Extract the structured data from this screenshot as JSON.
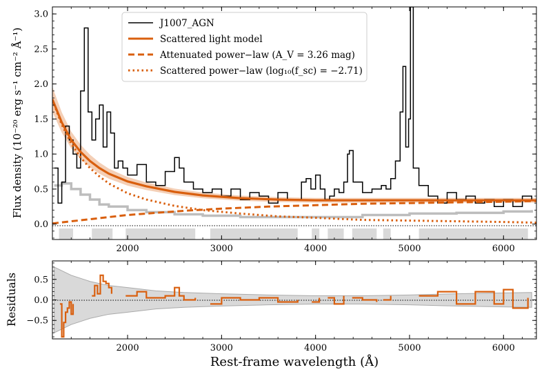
{
  "chart_data": [
    {
      "panel": "top",
      "type": "line",
      "ylabel": "Flux density (10⁻²⁰ erg s⁻¹ cm⁻² Å⁻¹)",
      "xlim": [
        1200,
        6350
      ],
      "ylim": [
        -0.22,
        3.1
      ],
      "yticks": [
        0.0,
        0.5,
        1.0,
        1.5,
        2.0,
        2.5,
        3.0
      ],
      "ytick_labels": [
        "0.0",
        "0.5",
        "1.0",
        "1.5",
        "2.0",
        "2.5",
        "3.0"
      ],
      "xticks": [
        2000,
        3000,
        4000,
        5000,
        6000
      ],
      "xtick_labels": [
        "2000",
        "3000",
        "4000",
        "5000",
        "6000"
      ],
      "zero_line": true,
      "legend": {
        "placement": "top-center",
        "entries": [
          {
            "label": "J1007_AGN",
            "style": "solid-thin",
            "color": "#000000"
          },
          {
            "label": "Scattered light model",
            "style": "solid-thick",
            "color": "#d95f0e"
          },
          {
            "label": "Attenuated power−law  (A_V = 3.26 mag)",
            "style": "dashed",
            "color": "#d95f0e"
          },
          {
            "label": "Scattered power−law  (log₁₀(f_sc) = −2.71)",
            "style": "dotted",
            "color": "#d95f0e"
          }
        ]
      },
      "masked_regions": [
        [
          1270,
          1420
        ],
        [
          1620,
          1840
        ],
        [
          1980,
          2720
        ],
        [
          2880,
          3810
        ],
        [
          3960,
          4040
        ],
        [
          4130,
          4300
        ],
        [
          4390,
          4650
        ],
        [
          4720,
          4800
        ],
        [
          5100,
          6260
        ]
      ],
      "series": [
        {
          "name": "J1007_AGN",
          "x": [
            1220,
            1260,
            1300,
            1340,
            1380,
            1420,
            1460,
            1500,
            1540,
            1580,
            1620,
            1660,
            1700,
            1740,
            1780,
            1820,
            1860,
            1900,
            1950,
            2000,
            2100,
            2200,
            2300,
            2400,
            2500,
            2550,
            2600,
            2700,
            2800,
            2900,
            3000,
            3100,
            3200,
            3300,
            3400,
            3500,
            3600,
            3700,
            3800,
            3850,
            3900,
            3950,
            4000,
            4050,
            4100,
            4150,
            4200,
            4250,
            4300,
            4340,
            4360,
            4400,
            4500,
            4600,
            4700,
            4750,
            4800,
            4850,
            4900,
            4930,
            4960,
            4990,
            5010,
            5040,
            5100,
            5200,
            5300,
            5400,
            5500,
            5600,
            5700,
            5800,
            5900,
            6000,
            6100,
            6200,
            6300
          ],
          "y": [
            0.8,
            0.3,
            0.6,
            1.4,
            1.2,
            1.0,
            0.8,
            1.9,
            2.8,
            1.6,
            1.2,
            1.5,
            1.7,
            1.1,
            1.6,
            1.3,
            0.8,
            0.9,
            0.8,
            0.7,
            0.85,
            0.6,
            0.55,
            0.75,
            0.95,
            0.8,
            0.6,
            0.5,
            0.45,
            0.5,
            0.4,
            0.5,
            0.35,
            0.45,
            0.4,
            0.3,
            0.45,
            0.35,
            0.35,
            0.6,
            0.65,
            0.5,
            0.7,
            0.5,
            0.35,
            0.4,
            0.5,
            0.45,
            0.6,
            1.0,
            1.05,
            0.6,
            0.45,
            0.5,
            0.55,
            0.5,
            0.65,
            0.9,
            1.6,
            2.25,
            1.1,
            1.5,
            3.1,
            0.8,
            0.55,
            0.4,
            0.3,
            0.45,
            0.35,
            0.4,
            0.3,
            0.35,
            0.25,
            0.35,
            0.25,
            0.4,
            0.35
          ]
        },
        {
          "name": "Scattered light model",
          "x": [
            1200,
            1300,
            1400,
            1500,
            1600,
            1700,
            1800,
            2000,
            2200,
            2500,
            2800,
            3200,
            3600,
            4000,
            4500,
            5000,
            5500,
            6000,
            6350
          ],
          "y": [
            1.78,
            1.45,
            1.2,
            1.03,
            0.9,
            0.8,
            0.72,
            0.61,
            0.54,
            0.46,
            0.41,
            0.37,
            0.35,
            0.34,
            0.34,
            0.34,
            0.34,
            0.34,
            0.34
          ]
        },
        {
          "name": "Attenuated power−law  (A_V = 3.26 mag)",
          "x": [
            1200,
            1400,
            1600,
            1800,
            2000,
            2300,
            2600,
            3000,
            3500,
            4000,
            4500,
            5000,
            5500,
            6000,
            6350
          ],
          "y": [
            0.01,
            0.04,
            0.07,
            0.1,
            0.13,
            0.16,
            0.19,
            0.22,
            0.25,
            0.27,
            0.29,
            0.3,
            0.31,
            0.32,
            0.33
          ]
        },
        {
          "name": "Scattered power−law  (log₁₀(f_sc) = −2.71)",
          "x": [
            1200,
            1300,
            1400,
            1500,
            1600,
            1700,
            1800,
            2000,
            2200,
            2500,
            2800,
            3200,
            3600,
            4000,
            4500,
            5000,
            5500,
            6000,
            6350
          ],
          "y": [
            1.77,
            1.42,
            1.15,
            0.95,
            0.8,
            0.68,
            0.58,
            0.44,
            0.35,
            0.26,
            0.2,
            0.15,
            0.11,
            0.09,
            0.06,
            0.05,
            0.04,
            0.03,
            0.02
          ]
        },
        {
          "name": "error",
          "x": [
            1220,
            1300,
            1400,
            1500,
            1600,
            1700,
            1800,
            2000,
            2200,
            2500,
            2800,
            3200,
            3600,
            4000,
            4500,
            5000,
            5500,
            6000,
            6300
          ],
          "y": [
            0.55,
            0.58,
            0.5,
            0.42,
            0.35,
            0.28,
            0.25,
            0.2,
            0.17,
            0.14,
            0.12,
            0.1,
            0.1,
            0.1,
            0.13,
            0.15,
            0.16,
            0.18,
            0.2
          ]
        }
      ]
    },
    {
      "panel": "bottom",
      "type": "line",
      "xlabel": "Rest-frame wavelength (Å)",
      "ylabel": "Residuals",
      "xlim": [
        1200,
        6350
      ],
      "ylim": [
        -0.95,
        0.95
      ],
      "yticks": [
        -0.5,
        0.0,
        0.5
      ],
      "ytick_labels": [
        "−0.5",
        "0.0",
        "0.5"
      ],
      "xticks": [
        2000,
        3000,
        4000,
        5000,
        6000
      ],
      "xtick_labels": [
        "2000",
        "3000",
        "4000",
        "5000",
        "6000"
      ],
      "zero_line": true,
      "series": [
        {
          "name": "residuals",
          "segments": [
            {
              "x": [
                1280,
                1300,
                1320,
                1340,
                1360,
                1380,
                1400,
                1420
              ],
              "y": [
                -0.1,
                -0.9,
                -0.55,
                -0.3,
                -0.2,
                -0.05,
                -0.35,
                -0.1
              ]
            },
            {
              "x": [
                1620,
                1650,
                1680,
                1710,
                1740,
                1770,
                1800,
                1830
              ],
              "y": [
                0.1,
                0.35,
                0.15,
                0.6,
                0.45,
                0.4,
                0.3,
                0.15
              ]
            },
            {
              "x": [
                1980,
                2100,
                2200,
                2300,
                2400,
                2500,
                2550,
                2600,
                2720
              ],
              "y": [
                0.1,
                0.2,
                0.05,
                0.05,
                0.1,
                0.3,
                0.1,
                0.0,
                0.05
              ]
            },
            {
              "x": [
                2880,
                3000,
                3200,
                3400,
                3600,
                3810
              ],
              "y": [
                -0.1,
                0.05,
                0.0,
                0.05,
                -0.05,
                0.0
              ]
            },
            {
              "x": [
                3960,
                4040
              ],
              "y": [
                -0.05,
                0.05
              ]
            },
            {
              "x": [
                4130,
                4200,
                4300
              ],
              "y": [
                0.05,
                -0.1,
                0.1
              ]
            },
            {
              "x": [
                4390,
                4500,
                4650
              ],
              "y": [
                0.05,
                0.0,
                -0.05
              ]
            },
            {
              "x": [
                4720,
                4800
              ],
              "y": [
                0.0,
                0.1
              ]
            },
            {
              "x": [
                5100,
                5300,
                5500,
                5700,
                5900,
                6000,
                6100,
                6260
              ],
              "y": [
                0.1,
                0.2,
                -0.1,
                0.2,
                -0.1,
                0.25,
                -0.2,
                0.05
              ]
            }
          ]
        },
        {
          "name": "uncertainty-band",
          "x": [
            1220,
            1400,
            1600,
            1800,
            2000,
            2300,
            2600,
            3000,
            3500,
            4000,
            4500,
            5000,
            5500,
            6000,
            6300
          ],
          "y": [
            0.8,
            0.6,
            0.45,
            0.35,
            0.3,
            0.22,
            0.18,
            0.15,
            0.12,
            0.1,
            0.1,
            0.12,
            0.15,
            0.17,
            0.18
          ]
        }
      ]
    }
  ]
}
